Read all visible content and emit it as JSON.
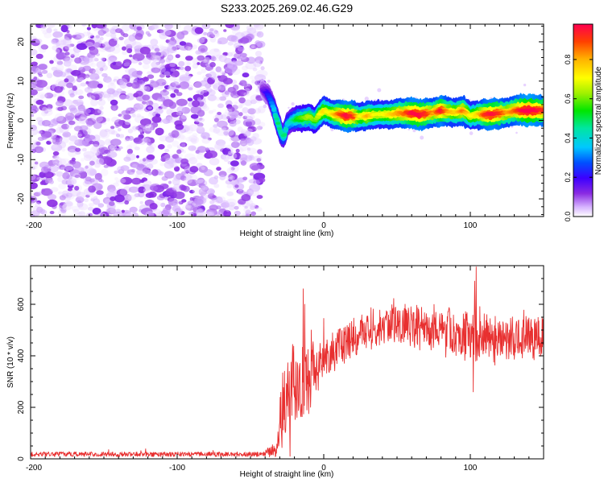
{
  "title": "S233.2025.269.02.46.G29",
  "colors": {
    "snr_line": "#e83030",
    "frame": "#000000",
    "scatter_noise": "#8a2be2",
    "colormap": [
      "#ffffff",
      "#d6b3ff",
      "#8a2be2",
      "#3c00ff",
      "#0050ff",
      "#00c8ff",
      "#00e6a0",
      "#00e600",
      "#a0f000",
      "#ffff00",
      "#ffb000",
      "#ff4000",
      "#ff0050"
    ]
  },
  "chart_data": [
    {
      "type": "heatmap",
      "name": "spectrogram",
      "xlabel": "Height of straight line (km)",
      "ylabel": "Frequency (Hz)",
      "xlim": [
        -200,
        150
      ],
      "ylim": [
        -24.5,
        24.5
      ],
      "xticks": [
        -200,
        -100,
        0,
        100
      ],
      "xtick_labels": [
        "-200",
        "-100",
        "0",
        "100"
      ],
      "yticks": [
        -20,
        -10,
        0,
        10,
        20
      ],
      "ytick_labels": [
        "-20",
        "-10",
        "0",
        "10",
        "20"
      ],
      "noise_region_x": [
        -200,
        -42
      ],
      "noise_amplitude_range": [
        0.0,
        0.15
      ],
      "ridge": {
        "x": [
          -42,
          -38,
          -35,
          -33,
          -31,
          -29,
          -27,
          -25,
          -22,
          -18,
          -14,
          -10,
          -6,
          -3,
          0,
          3,
          6,
          10,
          15,
          20,
          25,
          30,
          35,
          40,
          45,
          50,
          55,
          60,
          65,
          70,
          75,
          80,
          85,
          90,
          95,
          100,
          105,
          110,
          115,
          120,
          125,
          130,
          135,
          140,
          145,
          150
        ],
        "frequency": [
          8.0,
          6.5,
          4.0,
          1.5,
          -1.0,
          -3.5,
          -4.0,
          -1.0,
          0.0,
          0.5,
          0.5,
          1.0,
          0.0,
          1.5,
          2.5,
          2.0,
          1.5,
          1.5,
          1.0,
          1.0,
          1.0,
          1.2,
          1.5,
          1.5,
          1.5,
          1.8,
          1.8,
          1.8,
          1.5,
          1.8,
          2.0,
          2.5,
          2.2,
          2.0,
          2.5,
          1.0,
          1.5,
          1.5,
          1.5,
          1.8,
          2.0,
          2.5,
          2.5,
          2.5,
          2.5,
          2.5
        ],
        "amplitude": [
          0.15,
          0.25,
          0.35,
          0.45,
          0.5,
          0.45,
          0.5,
          0.4,
          0.45,
          0.55,
          0.6,
          0.65,
          0.6,
          0.7,
          0.75,
          0.7,
          0.75,
          0.85,
          0.95,
          0.9,
          0.7,
          0.8,
          0.7,
          0.7,
          0.75,
          0.8,
          0.85,
          0.95,
          0.95,
          0.9,
          0.8,
          0.95,
          0.8,
          0.75,
          0.85,
          0.7,
          0.75,
          0.9,
          0.95,
          0.9,
          0.8,
          0.85,
          0.95,
          1.0,
          0.95,
          0.9
        ]
      },
      "colorbar": {
        "label": "Normalized spectral amplitude",
        "range": [
          0.0,
          0.98
        ],
        "ticks": [
          0.0,
          0.2,
          0.4,
          0.6,
          0.8
        ],
        "tick_labels": [
          "0.0",
          "0.2",
          "0.4",
          "0.6",
          "0.8"
        ]
      }
    },
    {
      "type": "line",
      "name": "snr",
      "xlabel": "Height of straight line (km)",
      "ylabel": "SNR (10 * v/v)",
      "xlim": [
        -200,
        150
      ],
      "ylim": [
        0,
        750
      ],
      "xticks": [
        -200,
        -100,
        0,
        100
      ],
      "xtick_labels": [
        "-200",
        "-100",
        "0",
        "100"
      ],
      "yticks": [
        0,
        200,
        400,
        600
      ],
      "ytick_labels": [
        "0",
        "200",
        "400",
        "600"
      ],
      "envelope": {
        "x": [
          -200,
          -60,
          -40,
          -32,
          -30,
          -28,
          -26,
          -24,
          -20,
          -15,
          -10,
          -5,
          0,
          10,
          20,
          30,
          40,
          50,
          60,
          70,
          80,
          90,
          100,
          110,
          120,
          130,
          140,
          150
        ],
        "mean": [
          18,
          18,
          20,
          40,
          120,
          220,
          180,
          260,
          300,
          230,
          320,
          360,
          390,
          430,
          470,
          500,
          520,
          530,
          520,
          510,
          500,
          490,
          480,
          470,
          470,
          475,
          480,
          470
        ],
        "spread": [
          10,
          12,
          15,
          40,
          150,
          200,
          250,
          250,
          240,
          220,
          180,
          130,
          110,
          100,
          90,
          90,
          100,
          100,
          100,
          100,
          110,
          110,
          130,
          120,
          110,
          110,
          110,
          120
        ]
      },
      "peaks": [
        {
          "x": -14,
          "y": 660
        },
        {
          "x": -13,
          "y": 600
        },
        {
          "x": 0,
          "y": 545
        },
        {
          "x": 104,
          "y": 745
        },
        {
          "x": 103,
          "y": 690
        },
        {
          "x": 102,
          "y": 260
        },
        {
          "x": -23,
          "y": 10
        }
      ]
    }
  ]
}
